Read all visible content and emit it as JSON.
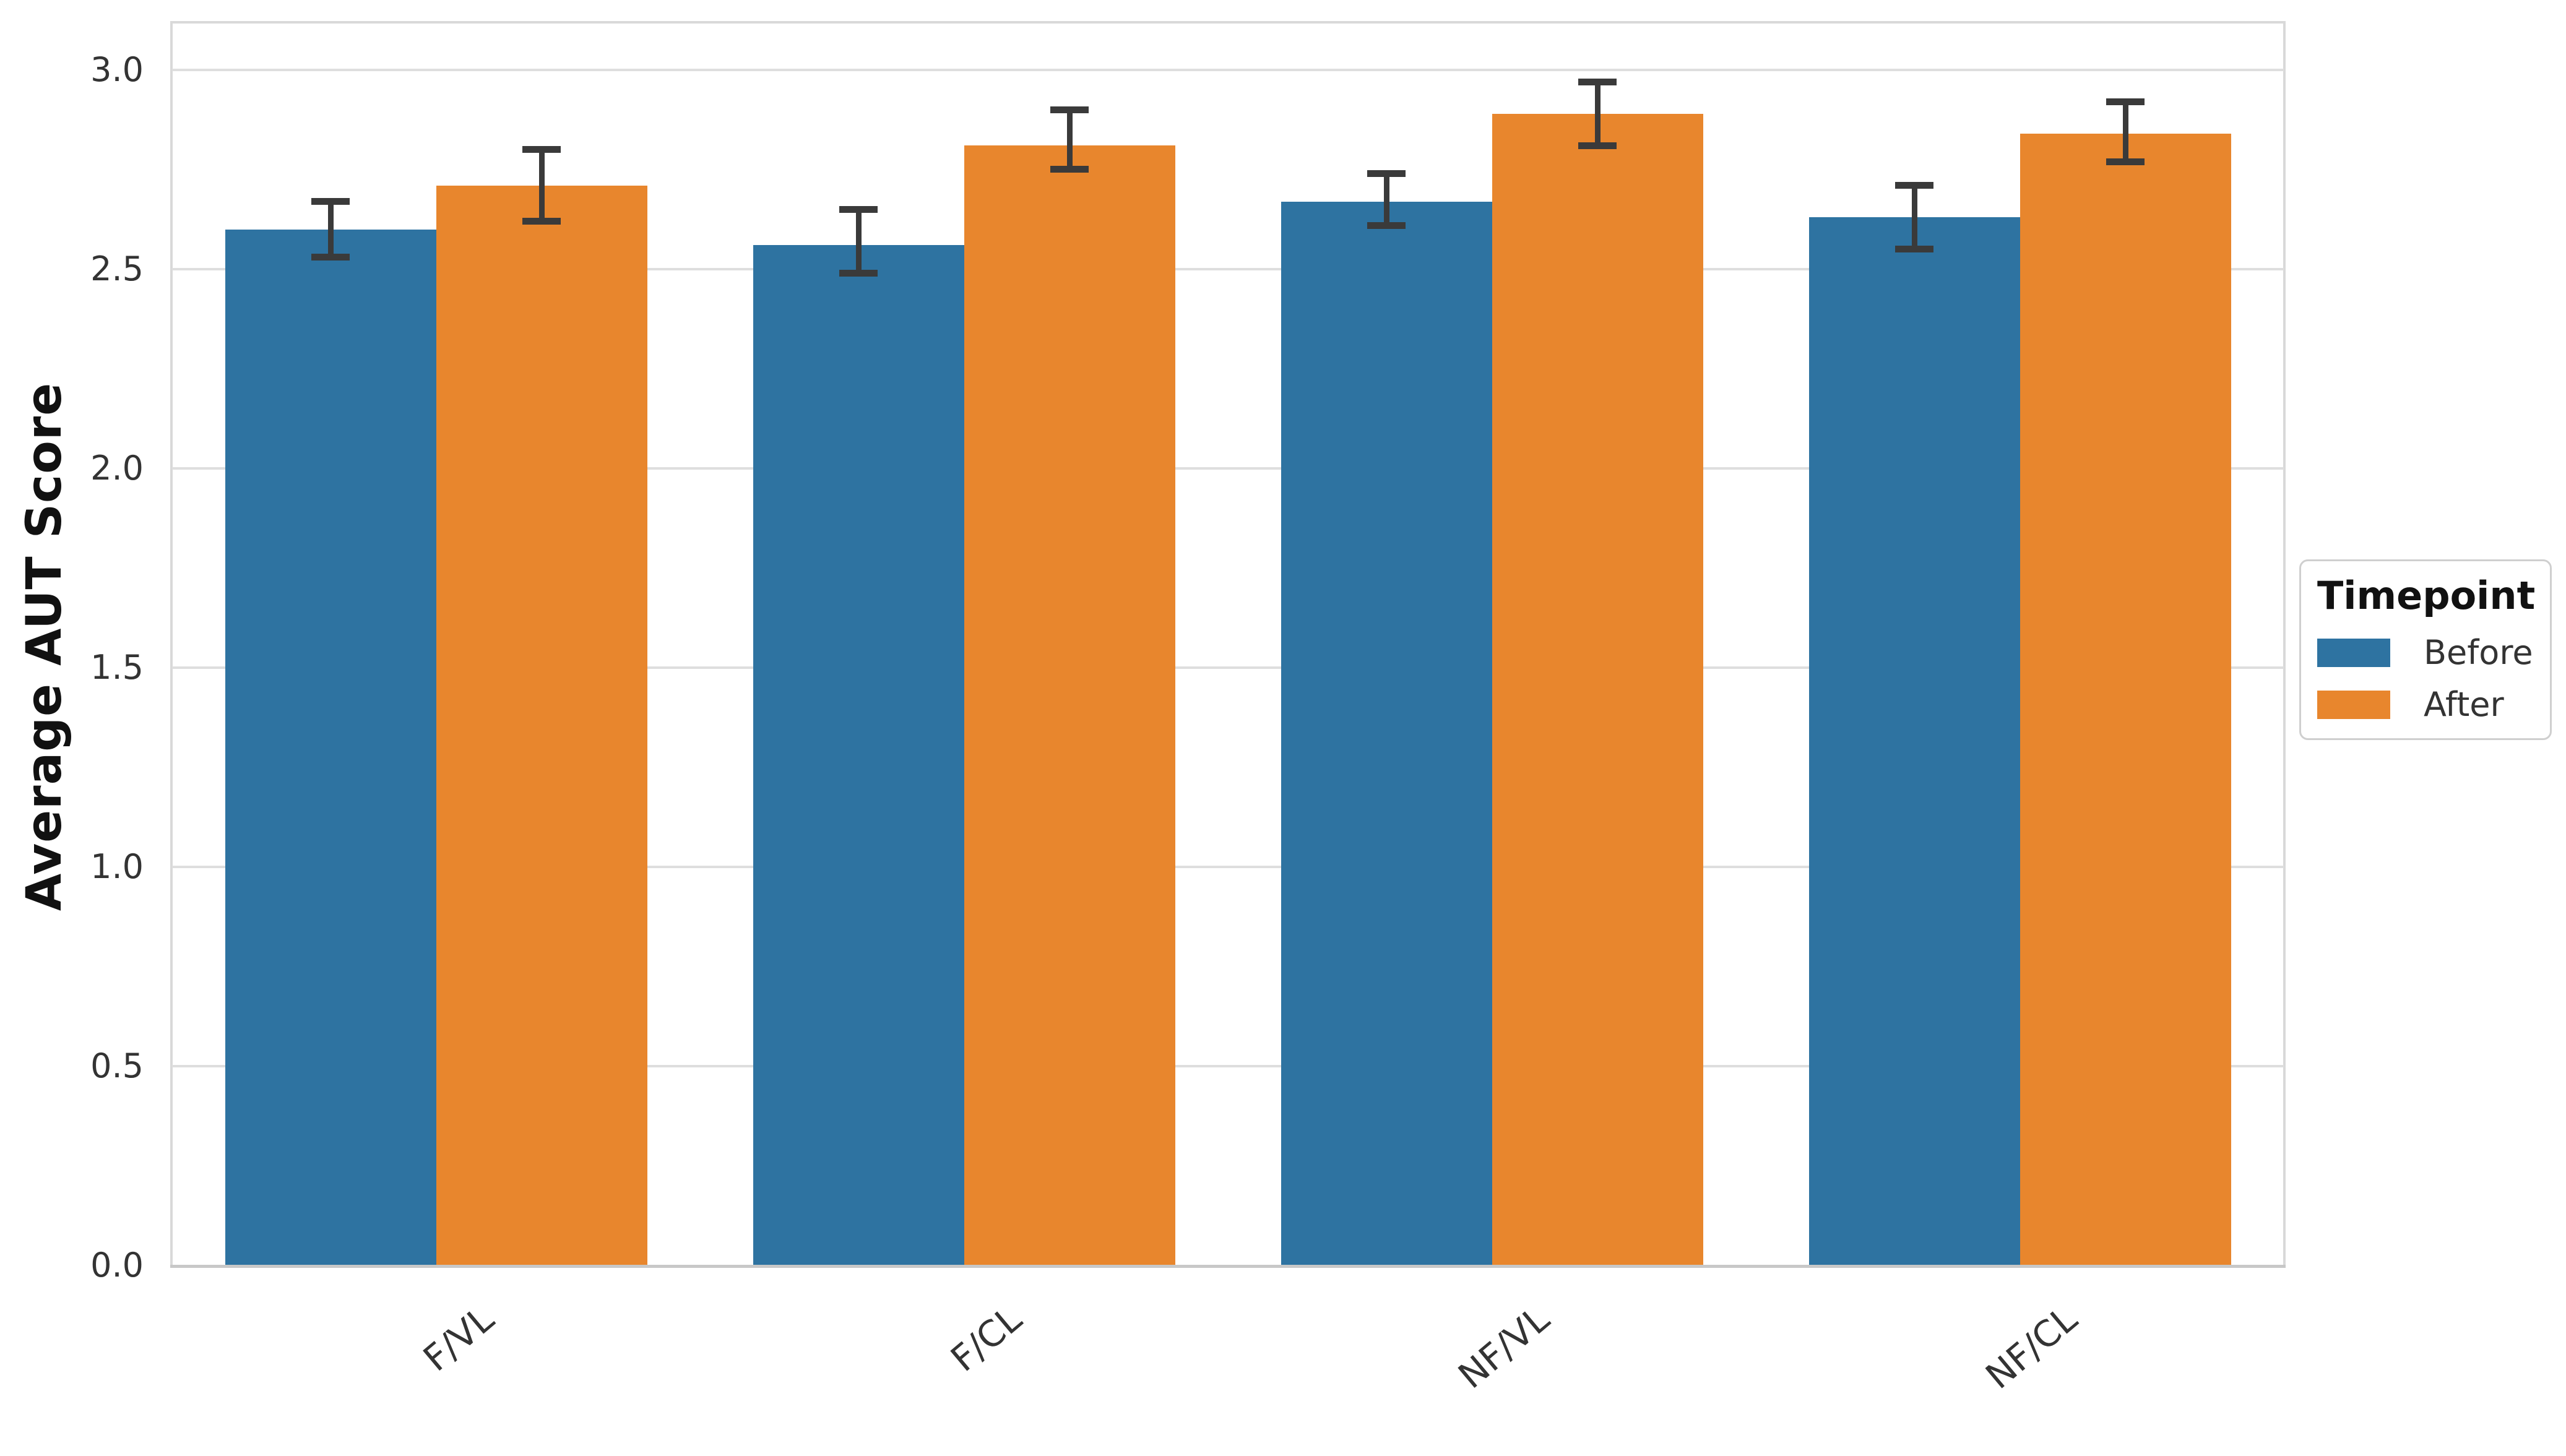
{
  "chart_data": {
    "type": "bar",
    "title": "",
    "xlabel": "",
    "ylabel": "Average AUT Score",
    "categories": [
      "F/VL",
      "F/CL",
      "NF/VL",
      "NF/CL"
    ],
    "series": [
      {
        "name": "Before",
        "values": [
          2.6,
          2.56,
          2.67,
          2.63
        ],
        "err_low": [
          2.53,
          2.49,
          2.61,
          2.55
        ],
        "err_high": [
          2.67,
          2.65,
          2.74,
          2.71
        ]
      },
      {
        "name": "After",
        "values": [
          2.71,
          2.81,
          2.89,
          2.84
        ],
        "err_low": [
          2.62,
          2.75,
          2.81,
          2.77
        ],
        "err_high": [
          2.8,
          2.9,
          2.97,
          2.92
        ]
      }
    ],
    "ylim": [
      0,
      3.118
    ],
    "yticks": [
      "0.0",
      "0.5",
      "1.0",
      "1.5",
      "2.0",
      "2.5",
      "3.0"
    ],
    "grid": true,
    "legend": {
      "title": "Timepoint",
      "position": "center-right"
    }
  },
  "colors": {
    "before": "#2E73A1",
    "after": "#E8862D",
    "error_bar": "#3A3A3A",
    "grid_line": "#DEDEDE",
    "spine": "#D9D9D9",
    "baseline": "#C8C8C8",
    "tick_text": "#333333",
    "axis_title_text": "#111111",
    "legend_border": "#CFCFCF",
    "background": "#FFFFFF"
  }
}
